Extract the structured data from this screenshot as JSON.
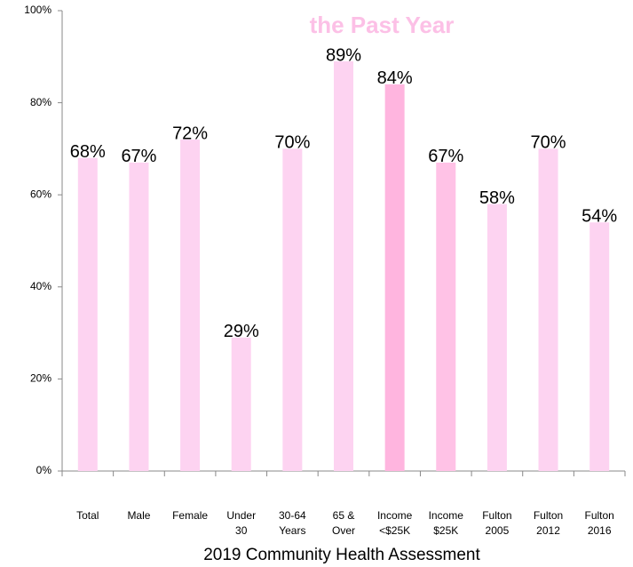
{
  "chart_data": {
    "type": "bar",
    "title": "the Past Year",
    "categories": [
      "Total",
      "Male",
      "Female",
      "Under\n30",
      "30-64\nYears",
      "65 &\nOver",
      "Income\n<$25K",
      "Income\n$25K",
      "Fulton\n2005",
      "Fulton\n2012",
      "Fulton\n2016"
    ],
    "values": [
      68,
      67,
      72,
      29,
      70,
      89,
      84,
      67,
      58,
      70,
      54
    ],
    "value_labels": [
      "68%",
      "67%",
      "72%",
      "29%",
      "70%",
      "89%",
      "84%",
      "67%",
      "58%",
      "70%",
      "54%"
    ],
    "colors": [
      "#fdd3f1",
      "#fdd3f1",
      "#fdd3f1",
      "#fdd3f1",
      "#fdd3f1",
      "#fdd3f1",
      "#ffb5df",
      "#ffc2e6",
      "#fdd3f1",
      "#fdd3f1",
      "#fdd3f1"
    ],
    "ylim": [
      0,
      100
    ],
    "yticks": [
      {
        "value": 0,
        "label": "0%"
      },
      {
        "value": 20,
        "label": "20%"
      },
      {
        "value": 40,
        "label": "40%"
      },
      {
        "value": 60,
        "label": "60%"
      },
      {
        "value": 80,
        "label": "80%"
      },
      {
        "value": 100,
        "label": "100%"
      }
    ],
    "xlabel": "2019 Community Health Assessment"
  }
}
